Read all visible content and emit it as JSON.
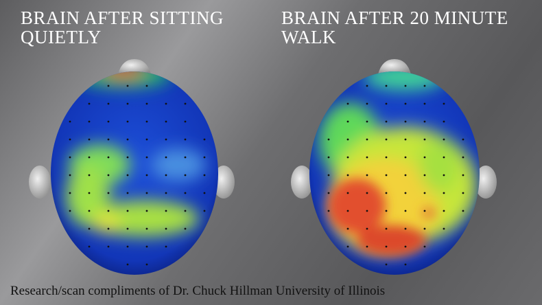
{
  "panels": [
    {
      "title": "BRAIN AFTER SITTING QUIETLY"
    },
    {
      "title": "BRAIN AFTER 20 MINUTE WALK"
    }
  ],
  "caption": "Research/scan compliments of Dr. Chuck Hillman University of Illinois"
}
